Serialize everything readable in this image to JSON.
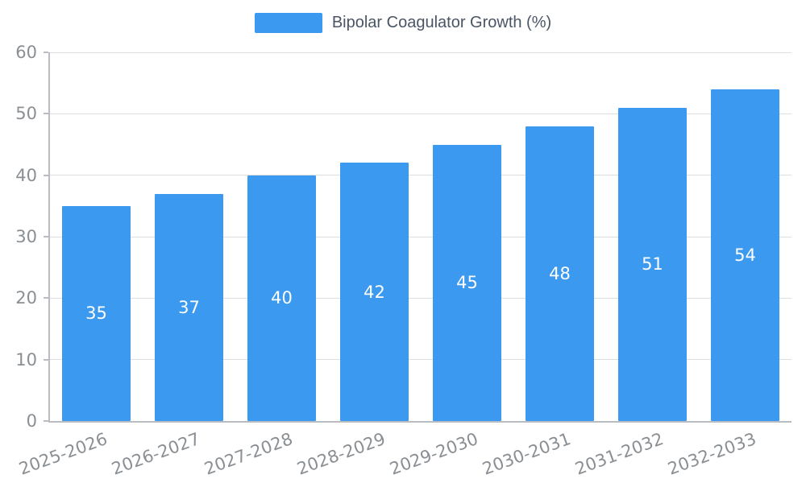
{
  "chart_data": {
    "type": "bar",
    "title": "Bipolar Coagulator Growth (%)",
    "legend": [
      "Bipolar Coagulator Growth (%)"
    ],
    "legend_position": "top-center",
    "categories": [
      "2025-2026",
      "2026-2027",
      "2027-2028",
      "2028-2029",
      "2029-2030",
      "2030-2031",
      "2031-2032",
      "2032-2033"
    ],
    "values": [
      35,
      37,
      40,
      42,
      45,
      48,
      51,
      54
    ],
    "xlabel": "",
    "ylabel": "",
    "ylim": [
      0,
      60
    ],
    "yticks": [
      0,
      10,
      20,
      30,
      40,
      50,
      60
    ],
    "grid": true,
    "bar_color": "#3b99f0",
    "value_label_color": "#ffffff",
    "axis_color": "#b9bdc1",
    "grid_color": "#dcdfe2",
    "tick_label_color": "#8a8f94",
    "title_color": "#4a5566",
    "background_color": "#ffffff"
  }
}
